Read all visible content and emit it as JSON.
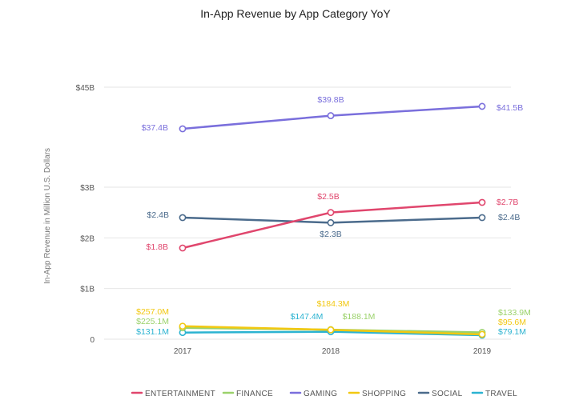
{
  "chart_data": {
    "type": "line",
    "title": "In-App Revenue by App Category YoY",
    "ylabel": "In-App Revenue in Million U.S. Dollars",
    "xlabel": "",
    "x": [
      "2017",
      "2018",
      "2019"
    ],
    "y_ticks": [
      {
        "value": 0,
        "label": "0"
      },
      {
        "value": 1000,
        "label": "$1B"
      },
      {
        "value": 2000,
        "label": "$2B"
      },
      {
        "value": 3000,
        "label": "$3B"
      },
      {
        "value": 45000,
        "label": "$45B"
      }
    ],
    "y_scale": "broken",
    "y_break": [
      3000,
      37000
    ],
    "grid": "horizontal",
    "legend_position": "bottom",
    "series": [
      {
        "name": "ENTERTAINMENT",
        "color": "#e0466d",
        "values": [
          1800,
          2500,
          2700
        ],
        "labels": [
          "$1.8B",
          "$2.5B",
          "$2.7B"
        ]
      },
      {
        "name": "FINANCE",
        "color": "#9bd26b",
        "values": [
          225.1,
          188.1,
          133.9
        ],
        "labels": [
          "$225.1M",
          "$188.1M",
          "$133.9M"
        ]
      },
      {
        "name": "GAMING",
        "color": "#7a6fdc",
        "values": [
          37400,
          39800,
          41500
        ],
        "labels": [
          "$37.4B",
          "$39.8B",
          "$41.5B"
        ]
      },
      {
        "name": "SHOPPING",
        "color": "#f2c811",
        "values": [
          257.0,
          184.3,
          95.6
        ],
        "labels": [
          "$257.0M",
          "$184.3M",
          "$95.6M"
        ]
      },
      {
        "name": "SOCIAL",
        "color": "#4b6b8c",
        "values": [
          2400,
          2300,
          2400
        ],
        "labels": [
          "$2.4B",
          "$2.3B",
          "$2.4B"
        ]
      },
      {
        "name": "TRAVEL",
        "color": "#2bb3d1",
        "values": [
          131.1,
          147.4,
          79.1
        ],
        "labels": [
          "$131.1M",
          "$147.4M",
          "$79.1M"
        ]
      }
    ]
  }
}
